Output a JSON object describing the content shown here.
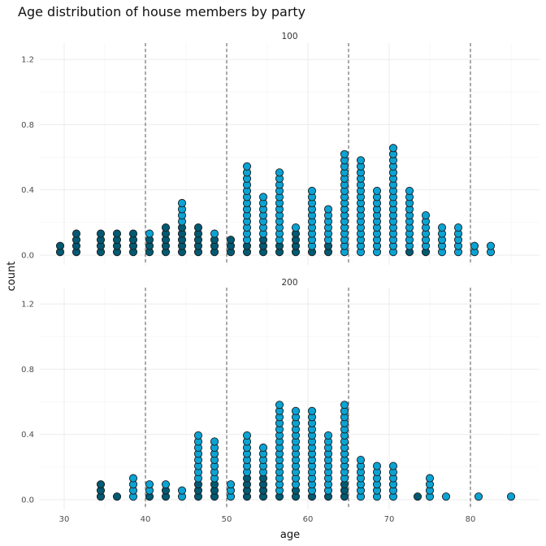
{
  "chart_data": {
    "type": "scatter",
    "subtype": "dotplot",
    "title": "Age distribution of house members by party",
    "xlabel": "age",
    "ylabel": "count",
    "xlim": [
      27,
      88.5
    ],
    "x_ticks": [
      30,
      40,
      50,
      60,
      70,
      80
    ],
    "ylim": [
      -0.06,
      1.3
    ],
    "y_ticks": [
      0.0,
      0.4,
      0.8,
      1.2
    ],
    "y_tick_labels": [
      "0.0",
      "0.4",
      "0.8",
      "1.2"
    ],
    "reference_lines_x": [
      40,
      50,
      65,
      80
    ],
    "grid": true,
    "dot_step": 0.0375,
    "colors": {
      "dark": "#005a73",
      "light": "#0aa3d4",
      "outline": "#1a1a1a"
    },
    "panels": [
      {
        "label": "100",
        "bins": [
          {
            "x": 29.5,
            "dark": 2,
            "light": 0
          },
          {
            "x": 31.5,
            "dark": 4,
            "light": 0
          },
          {
            "x": 34.5,
            "dark": 4,
            "light": 0
          },
          {
            "x": 36.5,
            "dark": 4,
            "light": 0
          },
          {
            "x": 38.5,
            "dark": 4,
            "light": 0
          },
          {
            "x": 40.5,
            "dark": 3,
            "light": 1
          },
          {
            "x": 42.5,
            "dark": 5,
            "light": 0
          },
          {
            "x": 44.5,
            "dark": 5,
            "light": 4
          },
          {
            "x": 46.5,
            "dark": 5,
            "light": 0
          },
          {
            "x": 48.5,
            "dark": 3,
            "light": 1
          },
          {
            "x": 50.5,
            "dark": 3,
            "light": 0
          },
          {
            "x": 52.5,
            "dark": 2,
            "light": 13
          },
          {
            "x": 54.5,
            "dark": 3,
            "light": 7
          },
          {
            "x": 56.5,
            "dark": 2,
            "light": 12
          },
          {
            "x": 58.5,
            "dark": 4,
            "light": 1
          },
          {
            "x": 60.5,
            "dark": 1,
            "light": 10
          },
          {
            "x": 62.5,
            "dark": 2,
            "light": 6
          },
          {
            "x": 64.5,
            "dark": 0,
            "light": 17
          },
          {
            "x": 66.5,
            "dark": 0,
            "light": 16
          },
          {
            "x": 68.5,
            "dark": 0,
            "light": 11
          },
          {
            "x": 70.5,
            "dark": 0,
            "light": 18
          },
          {
            "x": 72.5,
            "dark": 1,
            "light": 10
          },
          {
            "x": 74.5,
            "dark": 1,
            "light": 6
          },
          {
            "x": 76.5,
            "dark": 0,
            "light": 5
          },
          {
            "x": 78.5,
            "dark": 0,
            "light": 5
          },
          {
            "x": 80.5,
            "dark": 0,
            "light": 2
          },
          {
            "x": 82.5,
            "dark": 0,
            "light": 2
          }
        ]
      },
      {
        "label": "200",
        "bins": [
          {
            "x": 34.5,
            "dark": 3,
            "light": 0
          },
          {
            "x": 36.5,
            "dark": 1,
            "light": 0
          },
          {
            "x": 38.5,
            "dark": 0,
            "light": 4
          },
          {
            "x": 40.5,
            "dark": 1,
            "light": 2
          },
          {
            "x": 42.5,
            "dark": 2,
            "light": 1
          },
          {
            "x": 44.5,
            "dark": 0,
            "light": 2
          },
          {
            "x": 46.5,
            "dark": 3,
            "light": 8
          },
          {
            "x": 48.5,
            "dark": 3,
            "light": 7
          },
          {
            "x": 50.5,
            "dark": 0,
            "light": 3
          },
          {
            "x": 52.5,
            "dark": 4,
            "light": 7
          },
          {
            "x": 54.5,
            "dark": 4,
            "light": 5
          },
          {
            "x": 56.5,
            "dark": 1,
            "light": 15
          },
          {
            "x": 58.5,
            "dark": 2,
            "light": 13
          },
          {
            "x": 60.5,
            "dark": 1,
            "light": 14
          },
          {
            "x": 62.5,
            "dark": 1,
            "light": 10
          },
          {
            "x": 64.5,
            "dark": 3,
            "light": 13
          },
          {
            "x": 66.5,
            "dark": 0,
            "light": 7
          },
          {
            "x": 68.5,
            "dark": 0,
            "light": 6
          },
          {
            "x": 70.5,
            "dark": 0,
            "light": 6
          },
          {
            "x": 73.5,
            "dark": 1,
            "light": 0
          },
          {
            "x": 75.0,
            "dark": 0,
            "light": 4
          },
          {
            "x": 77.0,
            "dark": 0,
            "light": 1
          },
          {
            "x": 81.0,
            "dark": 0,
            "light": 1
          },
          {
            "x": 85.0,
            "dark": 0,
            "light": 1
          }
        ]
      }
    ]
  }
}
